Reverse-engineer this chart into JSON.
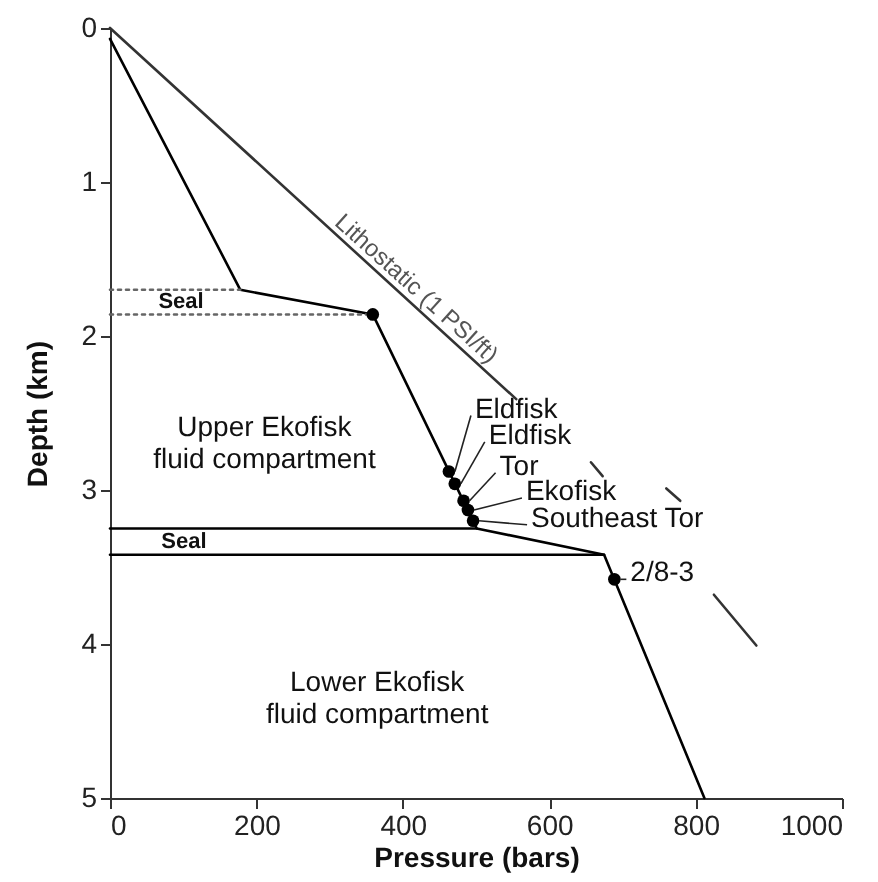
{
  "chart_data": {
    "type": "line",
    "xlabel": "Pressure (bars)",
    "ylabel": "Depth (km)",
    "xlim": [
      0,
      1000
    ],
    "xticks": [
      0,
      200,
      400,
      600,
      800,
      1000
    ],
    "ylim": [
      5,
      0
    ],
    "yticks": [
      0,
      1,
      2,
      3,
      4,
      5
    ],
    "grid": false,
    "series": [
      {
        "color": "#333333",
        "x": [
          0,
          555,
          null,
          657,
          673,
          null,
          760,
          779,
          null,
          825,
          883
        ],
        "values": [
          0,
          2.41,
          null,
          2.82,
          2.91,
          null,
          2.99,
          3.07,
          null,
          3.68,
          4.01
        ]
      },
      {
        "color": "#000000",
        "x": [
          0,
          178,
          359,
          501,
          675,
          812
        ],
        "values": [
          0.07,
          1.7,
          1.86,
          3.25,
          3.42,
          5.0
        ]
      },
      {
        "color": "#666666",
        "line_style": "dotted",
        "x": [
          0,
          178
        ],
        "values": [
          1.7,
          1.7
        ]
      },
      {
        "color": "#666666",
        "line_style": "dotted",
        "x": [
          0,
          359
        ],
        "values": [
          1.86,
          1.86
        ]
      },
      {
        "color": "#000000",
        "x": [
          0,
          501
        ],
        "values": [
          3.25,
          3.25
        ]
      },
      {
        "color": "#000000",
        "x": [
          0,
          675
        ],
        "values": [
          3.42,
          3.42
        ]
      },
      {
        "type": "scatter",
        "marker": "circle",
        "color": "#000000",
        "x": [
          359,
          463,
          471,
          483,
          489,
          496,
          689
        ],
        "values": [
          1.86,
          2.88,
          2.96,
          3.07,
          3.13,
          3.2,
          3.58
        ]
      }
    ],
    "annotations": [
      "Seal",
      "Upper Ekofisk\nfluid compartment",
      "Lithostatic (1 PSI/ft)",
      "Seal",
      "Lower Ekofisk\nfluid compartment",
      {
        "text": "Eldfisk",
        "x": 463,
        "y": 2.88
      },
      {
        "text": "Eldfisk",
        "x": 471,
        "y": 2.96
      },
      {
        "text": "Tor",
        "x": 483,
        "y": 3.07
      },
      {
        "text": "Ekofisk",
        "x": 489,
        "y": 3.13
      },
      {
        "text": "Southeast Tor",
        "x": 496,
        "y": 3.2
      },
      {
        "text": "2/8-3",
        "x": 689,
        "y": 3.58
      }
    ]
  }
}
